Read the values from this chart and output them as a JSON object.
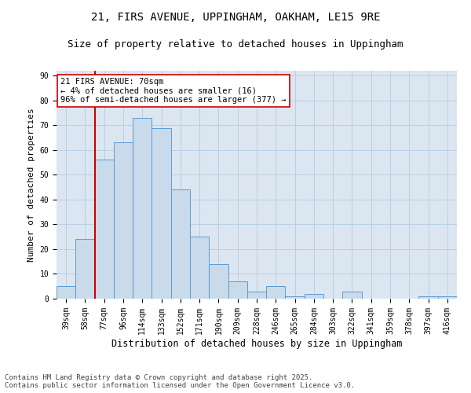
{
  "title1": "21, FIRS AVENUE, UPPINGHAM, OAKHAM, LE15 9RE",
  "title2": "Size of property relative to detached houses in Uppingham",
  "xlabel": "Distribution of detached houses by size in Uppingham",
  "ylabel": "Number of detached properties",
  "categories": [
    "39sqm",
    "58sqm",
    "77sqm",
    "96sqm",
    "114sqm",
    "133sqm",
    "152sqm",
    "171sqm",
    "190sqm",
    "209sqm",
    "228sqm",
    "246sqm",
    "265sqm",
    "284sqm",
    "303sqm",
    "322sqm",
    "341sqm",
    "359sqm",
    "378sqm",
    "397sqm",
    "416sqm"
  ],
  "values": [
    5,
    24,
    56,
    63,
    73,
    69,
    44,
    25,
    14,
    7,
    3,
    5,
    1,
    2,
    0,
    3,
    0,
    0,
    0,
    1,
    1
  ],
  "bar_color": "#c9daea",
  "bar_edge_color": "#5b9bd5",
  "vline_x": 1.5,
  "vline_color": "#cc0000",
  "annotation_text": "21 FIRS AVENUE: 70sqm\n← 4% of detached houses are smaller (16)\n96% of semi-detached houses are larger (377) →",
  "annotation_box_color": "#ffffff",
  "annotation_box_edge": "#cc0000",
  "yticks": [
    0,
    10,
    20,
    30,
    40,
    50,
    60,
    70,
    80,
    90
  ],
  "ylim": [
    0,
    92
  ],
  "grid_color": "#b8cfe4",
  "plot_bg_color": "#dce6f1",
  "footer_text": "Contains HM Land Registry data © Crown copyright and database right 2025.\nContains public sector information licensed under the Open Government Licence v3.0.",
  "title1_fontsize": 10,
  "title2_fontsize": 9,
  "xlabel_fontsize": 8.5,
  "ylabel_fontsize": 8,
  "tick_fontsize": 7,
  "annotation_fontsize": 7.5,
  "footer_fontsize": 6.5
}
